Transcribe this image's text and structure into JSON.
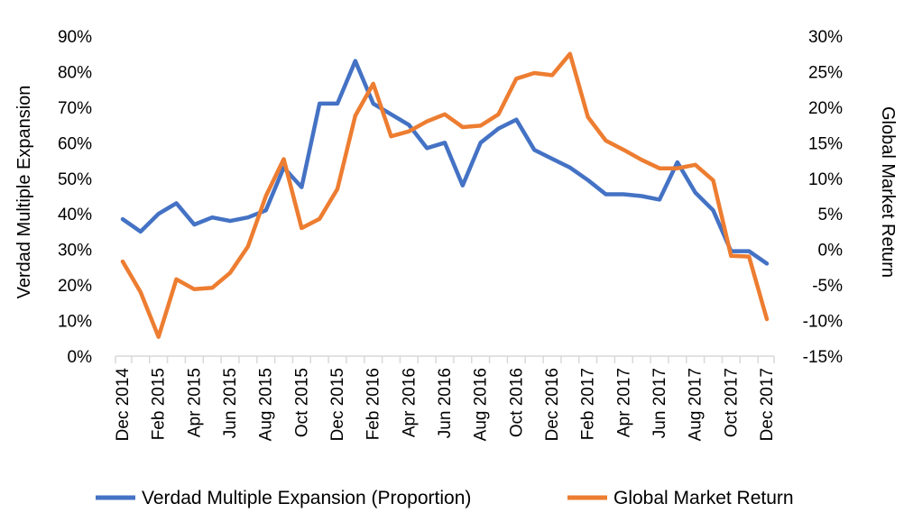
{
  "chart_data": {
    "type": "line",
    "title": "",
    "left_axis": {
      "label": "Verdad Multiple Expansion",
      "ylim": [
        0,
        0.9
      ],
      "ticks": [
        0,
        0.1,
        0.2,
        0.3,
        0.4,
        0.5,
        0.6,
        0.7,
        0.8,
        0.9
      ],
      "tick_labels": [
        "0%",
        "10%",
        "20%",
        "30%",
        "40%",
        "50%",
        "60%",
        "70%",
        "80%",
        "90%"
      ]
    },
    "right_axis": {
      "label": "Global Market Return",
      "ylim": [
        -15,
        30
      ],
      "ticks": [
        -15,
        -10,
        -5,
        0,
        5,
        10,
        15,
        20,
        25,
        30
      ],
      "tick_labels": [
        "-15%",
        "-10%",
        "-5%",
        "0%",
        "5%",
        "10%",
        "15%",
        "20%",
        "25%",
        "30%"
      ]
    },
    "x_tick_labels": [
      "Dec 2014",
      "Feb 2015",
      "Apr 2015",
      "Jun 2015",
      "Aug 2015",
      "Oct 2015",
      "Dec 2015",
      "Feb 2016",
      "Apr 2016",
      "Jun 2016",
      "Aug 2016",
      "Oct 2016",
      "Dec 2016",
      "Feb 2017",
      "Apr 2017",
      "Jun 2017",
      "Aug 2017",
      "Oct 2017",
      "Dec 2017"
    ],
    "categories": [
      "Dec 2014",
      "Jan 2015",
      "Feb 2015",
      "Mar 2015",
      "Apr 2015",
      "May 2015",
      "Jun 2015",
      "Jul 2015",
      "Aug 2015",
      "Sep 2015",
      "Oct 2015",
      "Nov 2015",
      "Dec 2015",
      "Jan 2016",
      "Feb 2016",
      "Mar 2016",
      "Apr 2016",
      "May 2016",
      "Jun 2016",
      "Jul 2016",
      "Aug 2016",
      "Sep 2016",
      "Oct 2016",
      "Nov 2016",
      "Dec 2016",
      "Jan 2017",
      "Feb 2017",
      "Mar 2017",
      "Apr 2017",
      "May 2017",
      "Jun 2017",
      "Jul 2017",
      "Aug 2017",
      "Sep 2017",
      "Oct 2017",
      "Nov 2017",
      "Dec 2017"
    ],
    "series": [
      {
        "name": "Verdad Multiple Expansion (Proportion)",
        "axis": "left",
        "color": "#4472C4",
        "values": [
          0.385,
          0.35,
          0.4,
          0.43,
          0.37,
          0.39,
          0.38,
          0.39,
          0.41,
          0.53,
          0.475,
          0.71,
          0.71,
          0.83,
          0.71,
          0.68,
          0.65,
          0.585,
          0.6,
          0.48,
          0.6,
          0.64,
          0.665,
          0.58,
          0.555,
          0.53,
          0.495,
          0.455,
          0.455,
          0.45,
          0.44,
          0.545,
          0.46,
          0.41,
          0.295,
          0.295,
          0.26
        ]
      },
      {
        "name": "Global Market Return",
        "axis": "right",
        "color": "#ED7D31",
        "values": [
          -1.7,
          -6.0,
          -12.3,
          -4.2,
          -5.6,
          -5.4,
          -3.3,
          0.4,
          7.5,
          12.7,
          3.0,
          4.3,
          8.5,
          18.8,
          23.3,
          15.9,
          16.6,
          18.0,
          19.0,
          17.2,
          17.4,
          19.0,
          24.0,
          24.8,
          24.5,
          27.5,
          18.6,
          15.3,
          14.0,
          12.6,
          11.4,
          11.4,
          11.9,
          9.7,
          -0.9,
          -1.0,
          -9.8
        ]
      }
    ],
    "legend_position": "bottom",
    "grid": false
  }
}
